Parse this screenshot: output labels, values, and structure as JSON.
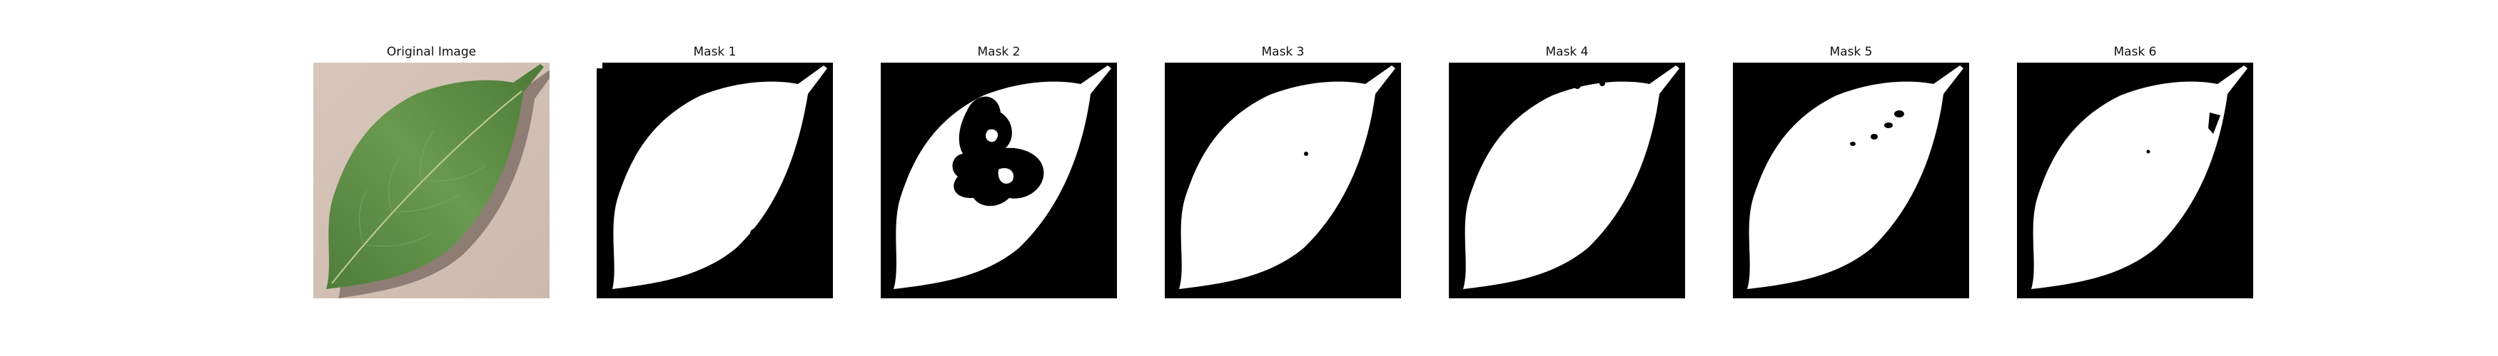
{
  "panels": [
    {
      "title": "Original Image",
      "kind": "photo"
    },
    {
      "title": "Mask 1",
      "kind": "mask"
    },
    {
      "title": "Mask 2",
      "kind": "mask"
    },
    {
      "title": "Mask 3",
      "kind": "mask"
    },
    {
      "title": "Mask 4",
      "kind": "mask"
    },
    {
      "title": "Mask 5",
      "kind": "mask"
    },
    {
      "title": "Mask 6",
      "kind": "mask"
    }
  ],
  "colors": {
    "mask_background": "#000000",
    "mask_foreground": "#ffffff",
    "leaf": "#5a8a43",
    "paper": "#d9c7bb"
  }
}
